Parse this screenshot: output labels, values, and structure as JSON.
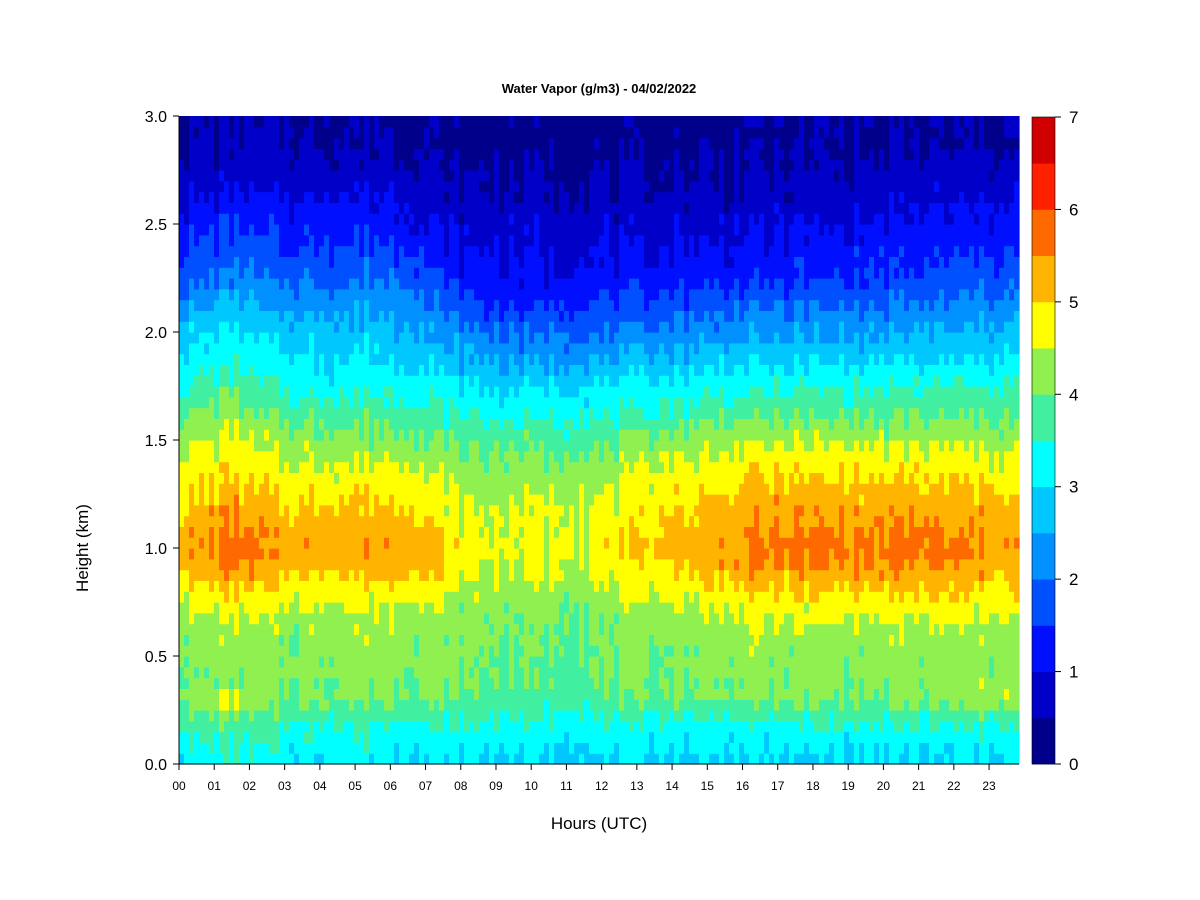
{
  "chart_data": {
    "type": "heatmap",
    "title": "Water Vapor (g/m3) - 04/02/2022",
    "xlabel": "Hours (UTC)",
    "ylabel": "Height (km)",
    "x_ticks": [
      "00",
      "01",
      "02",
      "03",
      "04",
      "05",
      "06",
      "07",
      "08",
      "09",
      "10",
      "11",
      "12",
      "13",
      "14",
      "15",
      "16",
      "17",
      "18",
      "19",
      "20",
      "21",
      "22",
      "23"
    ],
    "y_ticks": [
      "0.0",
      "0.5",
      "1.0",
      "1.5",
      "2.0",
      "2.5",
      "3.0"
    ],
    "xlim": [
      0,
      23.85
    ],
    "ylim": [
      0,
      3.0
    ],
    "colorbar": {
      "ticks": [
        "0",
        "1",
        "2",
        "3",
        "4",
        "5",
        "6",
        "7"
      ],
      "range": [
        0,
        7
      ],
      "levels": [
        0,
        0.5,
        1,
        1.5,
        2,
        2.5,
        3,
        3.5,
        4,
        4.5,
        5,
        5.5,
        6,
        6.5,
        7
      ],
      "colors": [
        "#00008a",
        "#0000c8",
        "#0010ff",
        "#0050ff",
        "#0090ff",
        "#00c8ff",
        "#00ffff",
        "#40f0a0",
        "#90f050",
        "#ffff00",
        "#ffb400",
        "#ff6a00",
        "#ff2000",
        "#d00000",
        "#800000"
      ]
    },
    "profile_heights_km": [
      0.0,
      0.1,
      0.2,
      0.3,
      0.4,
      0.5,
      0.6,
      0.7,
      0.8,
      0.9,
      1.0,
      1.1,
      1.2,
      1.3,
      1.4,
      1.5,
      1.6,
      1.7,
      1.8,
      1.9,
      2.0,
      2.1,
      2.2,
      2.3,
      2.4,
      2.5,
      2.6,
      2.7,
      2.8,
      2.9,
      3.0
    ],
    "profiles": [
      {
        "hour": 0.0,
        "values": [
          3.2,
          3.4,
          3.8,
          4.2,
          4.0,
          4.1,
          4.2,
          4.4,
          4.7,
          5.1,
          5.3,
          5.2,
          5.0,
          4.8,
          4.6,
          4.3,
          4.0,
          3.6,
          3.3,
          3.0,
          2.8,
          2.4,
          2.0,
          1.6,
          1.4,
          1.2,
          1.0,
          0.8,
          0.6,
          0.5,
          0.5
        ]
      },
      {
        "hour": 1.5,
        "values": [
          3.3,
          3.5,
          3.9,
          4.6,
          4.1,
          4.2,
          4.3,
          4.6,
          5.0,
          5.5,
          5.8,
          5.6,
          5.4,
          5.1,
          4.9,
          4.6,
          4.3,
          4.0,
          3.6,
          3.3,
          3.1,
          2.7,
          2.3,
          2.0,
          1.7,
          1.5,
          1.2,
          0.9,
          0.7,
          0.5,
          0.5
        ]
      },
      {
        "hour": 3.0,
        "values": [
          3.1,
          3.3,
          3.6,
          4.0,
          4.1,
          4.1,
          4.2,
          4.4,
          4.7,
          5.1,
          5.3,
          5.2,
          5.0,
          4.8,
          4.5,
          4.2,
          3.9,
          3.5,
          3.2,
          3.0,
          2.7,
          2.4,
          2.0,
          1.7,
          1.4,
          1.3,
          1.1,
          0.8,
          0.6,
          0.5,
          0.5
        ]
      },
      {
        "hour": 5.0,
        "values": [
          3.1,
          3.3,
          3.6,
          4.1,
          4.2,
          4.2,
          4.3,
          4.5,
          4.8,
          5.2,
          5.4,
          5.3,
          5.1,
          4.8,
          4.5,
          4.2,
          3.9,
          3.5,
          3.2,
          3.0,
          2.7,
          2.4,
          2.1,
          1.8,
          1.6,
          1.3,
          1.1,
          0.8,
          0.6,
          0.5,
          0.5
        ]
      },
      {
        "hour": 6.5,
        "values": [
          3.1,
          3.3,
          3.6,
          4.1,
          4.2,
          4.2,
          4.3,
          4.5,
          4.9,
          5.3,
          5.5,
          5.3,
          5.1,
          4.8,
          4.5,
          4.2,
          3.9,
          3.5,
          3.2,
          2.9,
          2.7,
          2.4,
          2.1,
          1.8,
          1.5,
          1.2,
          1.0,
          0.8,
          0.6,
          0.5,
          0.5
        ]
      },
      {
        "hour": 8.0,
        "values": [
          3.0,
          3.2,
          3.5,
          3.9,
          4.0,
          4.1,
          4.1,
          4.2,
          4.4,
          4.6,
          4.7,
          4.6,
          4.5,
          4.3,
          4.1,
          3.9,
          3.6,
          3.2,
          2.9,
          2.5,
          2.1,
          1.7,
          1.4,
          1.1,
          0.9,
          0.8,
          0.6,
          0.5,
          0.4,
          0.3,
          0.3
        ]
      },
      {
        "hour": 9.5,
        "values": [
          3.0,
          3.1,
          3.4,
          3.8,
          3.9,
          4.0,
          4.0,
          4.1,
          4.3,
          4.5,
          4.6,
          4.6,
          4.5,
          4.3,
          4.1,
          3.8,
          3.5,
          3.1,
          2.7,
          2.3,
          1.9,
          1.5,
          1.2,
          1.0,
          0.9,
          0.8,
          0.6,
          0.5,
          0.4,
          0.3,
          0.2
        ]
      },
      {
        "hour": 12.0,
        "values": [
          2.9,
          3.1,
          3.4,
          3.8,
          3.9,
          4.0,
          4.0,
          4.1,
          4.3,
          4.6,
          4.8,
          4.7,
          4.6,
          4.4,
          4.2,
          3.9,
          3.5,
          3.2,
          2.8,
          2.4,
          2.0,
          1.6,
          1.3,
          1.1,
          0.9,
          0.8,
          0.6,
          0.5,
          0.4,
          0.3,
          0.3
        ]
      },
      {
        "hour": 14.0,
        "values": [
          2.9,
          3.1,
          3.4,
          4.0,
          4.1,
          4.1,
          4.2,
          4.4,
          4.7,
          5.0,
          5.2,
          5.1,
          5.0,
          4.8,
          4.5,
          4.2,
          3.8,
          3.4,
          3.0,
          2.6,
          2.2,
          1.8,
          1.4,
          1.2,
          1.0,
          0.8,
          0.6,
          0.5,
          0.4,
          0.3,
          0.3
        ]
      },
      {
        "hour": 16.5,
        "values": [
          2.9,
          3.1,
          3.4,
          4.1,
          4.2,
          4.2,
          4.3,
          4.6,
          5.0,
          5.4,
          5.6,
          5.5,
          5.3,
          5.0,
          4.8,
          4.4,
          4.0,
          3.6,
          3.2,
          2.8,
          2.4,
          2.0,
          1.6,
          1.3,
          1.1,
          0.9,
          0.7,
          0.6,
          0.5,
          0.4,
          0.4
        ]
      },
      {
        "hour": 19.0,
        "values": [
          2.9,
          3.1,
          3.5,
          4.1,
          4.2,
          4.2,
          4.3,
          4.6,
          5.0,
          5.4,
          5.7,
          5.5,
          5.3,
          5.1,
          4.8,
          4.4,
          4.0,
          3.6,
          3.2,
          2.8,
          2.4,
          2.0,
          1.6,
          1.4,
          1.2,
          1.0,
          0.8,
          0.6,
          0.5,
          0.4,
          0.4
        ]
      },
      {
        "hour": 21.5,
        "values": [
          2.9,
          3.1,
          3.4,
          4.1,
          4.2,
          4.2,
          4.3,
          4.6,
          5.0,
          5.4,
          5.6,
          5.5,
          5.3,
          5.0,
          4.7,
          4.3,
          4.0,
          3.6,
          3.2,
          2.8,
          2.5,
          2.1,
          1.8,
          1.5,
          1.3,
          1.1,
          0.9,
          0.7,
          0.6,
          0.4,
          0.4
        ]
      },
      {
        "hour": 23.85,
        "values": [
          3.1,
          3.3,
          3.6,
          4.5,
          4.3,
          4.2,
          4.3,
          4.5,
          4.9,
          5.2,
          5.4,
          5.3,
          5.1,
          4.9,
          4.6,
          4.3,
          4.0,
          3.7,
          3.4,
          3.1,
          2.8,
          2.4,
          2.0,
          1.7,
          1.4,
          1.2,
          1.0,
          0.8,
          0.6,
          0.5,
          0.5
        ]
      }
    ]
  }
}
